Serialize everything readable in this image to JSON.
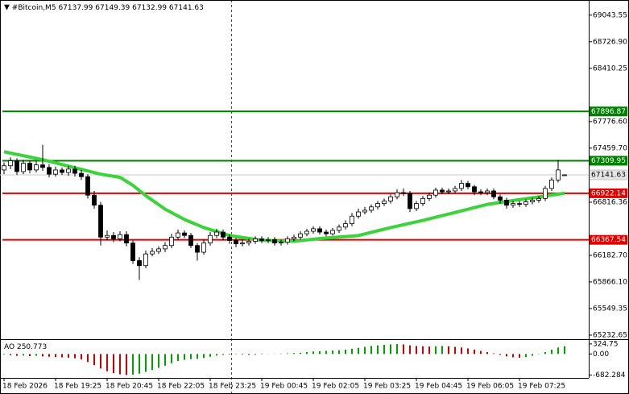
{
  "chart_data": {
    "type": "candlestick",
    "symbol": "#Bitcoin,M5",
    "categories": [
      "18 Feb 2026",
      null,
      null,
      null,
      null,
      null,
      null,
      null,
      "18 Feb 19:25",
      null,
      null,
      null,
      null,
      null,
      null,
      null,
      "18 Feb 20:45",
      null,
      null,
      null,
      null,
      null,
      null,
      null,
      "18 Feb 22:05",
      null,
      null,
      null,
      null,
      null,
      null,
      null,
      "18 Feb 23:25",
      null,
      null,
      null,
      null,
      null,
      null,
      null,
      "19 Feb 00:45",
      null,
      null,
      null,
      null,
      null,
      null,
      null,
      "19 Feb 02:05",
      null,
      null,
      null,
      null,
      null,
      null,
      null,
      "19 Feb 03:25",
      null,
      null,
      null,
      null,
      null,
      null,
      null,
      "19 Feb 04:45",
      null,
      null,
      null,
      null,
      null,
      null,
      null,
      "19 Feb 06:05",
      null,
      null,
      null,
      null,
      null,
      null,
      null,
      "19 Feb 07:25",
      null,
      null,
      null,
      null,
      null,
      null,
      null
    ],
    "open": [
      67200,
      67250,
      67310,
      67180,
      67280,
      67200,
      67260,
      67230,
      67150,
      67200,
      67170,
      67210,
      67160,
      67120,
      66900,
      66780,
      66400,
      66420,
      66380,
      66430,
      66330,
      66120,
      66060,
      66200,
      66230,
      66260,
      66300,
      66400,
      66450,
      66420,
      66300,
      66220,
      66330,
      66420,
      66460,
      66400,
      66360,
      66320,
      66330,
      66350,
      66380,
      66360,
      66370,
      66330,
      66340,
      66380,
      66400,
      66440,
      66470,
      66500,
      66460,
      66440,
      66480,
      66520,
      66560,
      66650,
      66700,
      66720,
      66760,
      66800,
      66830,
      66880,
      66930,
      66920,
      66740,
      66800,
      66860,
      66900,
      66960,
      66940,
      66950,
      66980,
      67040,
      67000,
      66940,
      66930,
      66950,
      66880,
      66840,
      66780,
      66800,
      66790,
      66820,
      66840,
      66860,
      66980,
      67080,
      67137.99
    ],
    "high": [
      67290,
      67350,
      67340,
      67320,
      67310,
      67300,
      67500,
      67270,
      67240,
      67230,
      67250,
      67250,
      67200,
      67150,
      66950,
      66820,
      66480,
      66460,
      66470,
      66470,
      66360,
      66160,
      66240,
      66270,
      66290,
      66340,
      66440,
      66490,
      66480,
      66450,
      66330,
      66370,
      66460,
      66500,
      66490,
      66430,
      66390,
      66370,
      66380,
      66410,
      66410,
      66400,
      66400,
      66370,
      66410,
      66430,
      66470,
      66500,
      66530,
      66530,
      66490,
      66510,
      66550,
      66600,
      66690,
      66740,
      66760,
      66790,
      66830,
      66860,
      66910,
      66970,
      66980,
      66950,
      66830,
      66890,
      66930,
      66990,
      66990,
      66980,
      67010,
      67080,
      67070,
      67020,
      66970,
      66980,
      66980,
      66910,
      66870,
      66830,
      66830,
      66850,
      66870,
      66890,
      67010,
      67110,
      67320,
      67149.39
    ],
    "low": [
      67150,
      67210,
      67140,
      67150,
      67160,
      67170,
      67190,
      67110,
      67120,
      67140,
      67130,
      67120,
      67080,
      66860,
      66740,
      66300,
      66360,
      66340,
      66350,
      66290,
      66080,
      65890,
      66030,
      66170,
      66200,
      66220,
      66270,
      66370,
      66390,
      66270,
      66120,
      66190,
      66300,
      66390,
      66360,
      66320,
      66280,
      66290,
      66300,
      66320,
      66330,
      66330,
      66300,
      66300,
      66310,
      66350,
      66370,
      66410,
      66440,
      66430,
      66410,
      66420,
      66450,
      66490,
      66530,
      66620,
      66670,
      66690,
      66730,
      66770,
      66800,
      66850,
      66890,
      66700,
      66710,
      66770,
      66830,
      66870,
      66910,
      66910,
      66920,
      66950,
      66970,
      66900,
      66900,
      66900,
      66850,
      66800,
      66740,
      66750,
      66760,
      66760,
      66790,
      66810,
      66830,
      66950,
      67050,
      67132.99
    ],
    "close": [
      67250,
      67310,
      67180,
      67280,
      67200,
      67260,
      67230,
      67150,
      67200,
      67170,
      67210,
      67160,
      67120,
      66900,
      66780,
      66400,
      66420,
      66380,
      66430,
      66330,
      66120,
      66060,
      66200,
      66230,
      66260,
      66300,
      66400,
      66450,
      66420,
      66300,
      66220,
      66330,
      66420,
      66460,
      66400,
      66360,
      66320,
      66330,
      66350,
      66380,
      66360,
      66370,
      66330,
      66340,
      66380,
      66400,
      66440,
      66470,
      66500,
      66460,
      66440,
      66480,
      66520,
      66560,
      66650,
      66700,
      66720,
      66760,
      66800,
      66830,
      66880,
      66930,
      66920,
      66740,
      66800,
      66860,
      66900,
      66960,
      66940,
      66950,
      66980,
      67040,
      67000,
      66940,
      66930,
      66950,
      66880,
      66840,
      66780,
      66800,
      66790,
      66820,
      66840,
      66860,
      66980,
      67080,
      67200,
      67141.63
    ],
    "ylim": [
      65213,
      69224
    ],
    "yticks": [
      69043.55,
      {
        "value": 68726.9,
        "label": "68726.90"
      },
      68410.25,
      {
        "value": 67776.6,
        "label": "67776.60"
      },
      {
        "value": 67459.7,
        "label": "67459.70"
      },
      66816.36,
      {
        "value": 66182.7,
        "label": "66182.70"
      },
      {
        "value": 65866.1,
        "label": "65866.10"
      },
      65549.35,
      65232.65
    ],
    "levels": [
      {
        "value": 67896.87,
        "color": "#008000"
      },
      {
        "value": 67309.95,
        "color": "#008000"
      },
      {
        "value": 66922.14,
        "color": "#e00000"
      },
      {
        "value": 66367.54,
        "color": "#e00000"
      }
    ],
    "ma": {
      "color": "#3ad43a",
      "values": [
        67417,
        67401,
        67385,
        67370,
        67354,
        67338,
        67322,
        67303,
        67284,
        67265,
        67245,
        67226,
        67207,
        67188,
        67169,
        67150,
        67137,
        67125,
        67112,
        67064,
        67017,
        66955,
        66894,
        66840,
        66787,
        66733,
        66692,
        66651,
        66610,
        66578,
        66546,
        66514,
        66490,
        66466,
        66443,
        66419,
        66408,
        66396,
        66385,
        66373,
        66362,
        66360,
        66358,
        66356,
        66354,
        66352,
        66360,
        66367,
        66375,
        66382,
        66390,
        66396,
        66402,
        66407,
        66413,
        66419,
        66438,
        66457,
        66476,
        66495,
        66514,
        66531,
        66548,
        66565,
        66582,
        66599,
        66618,
        66637,
        66656,
        66675,
        66694,
        66713,
        66732,
        66752,
        66771,
        66790,
        66801,
        66813,
        66824,
        66836,
        66847,
        66858,
        66868,
        66879,
        66890,
        66901,
        66911,
        66922
      ]
    },
    "indicator": {
      "name": "AO",
      "color_up": "#00a000",
      "color_down": "#d00000",
      "values": [
        -20,
        -40,
        -60,
        -50,
        -70,
        -60,
        -80,
        -90,
        -100,
        -110,
        -120,
        -140,
        -180,
        -260,
        -360,
        -470,
        -560,
        -620,
        -660,
        -682,
        -670,
        -640,
        -580,
        -520,
        -450,
        -380,
        -300,
        -230,
        -190,
        -170,
        -160,
        -130,
        -90,
        -50,
        -30,
        -20,
        -10,
        -20,
        -30,
        -25,
        -15,
        -5,
        5,
        10,
        20,
        30,
        40,
        60,
        80,
        90,
        100,
        110,
        120,
        140,
        170,
        200,
        230,
        260,
        280,
        300,
        310,
        320,
        310,
        280,
        260,
        250,
        240,
        250,
        260,
        250,
        230,
        210,
        180,
        140,
        100,
        60,
        20,
        -30,
        -80,
        -110,
        -120,
        -100,
        -60,
        -10,
        60,
        140,
        210,
        250.773
      ],
      "ylim": [
        -750,
        400
      ],
      "yticks": [
        324.75,
        {
          "value": 0,
          "label": "0.00"
        },
        -682.284
      ]
    }
  }
}
